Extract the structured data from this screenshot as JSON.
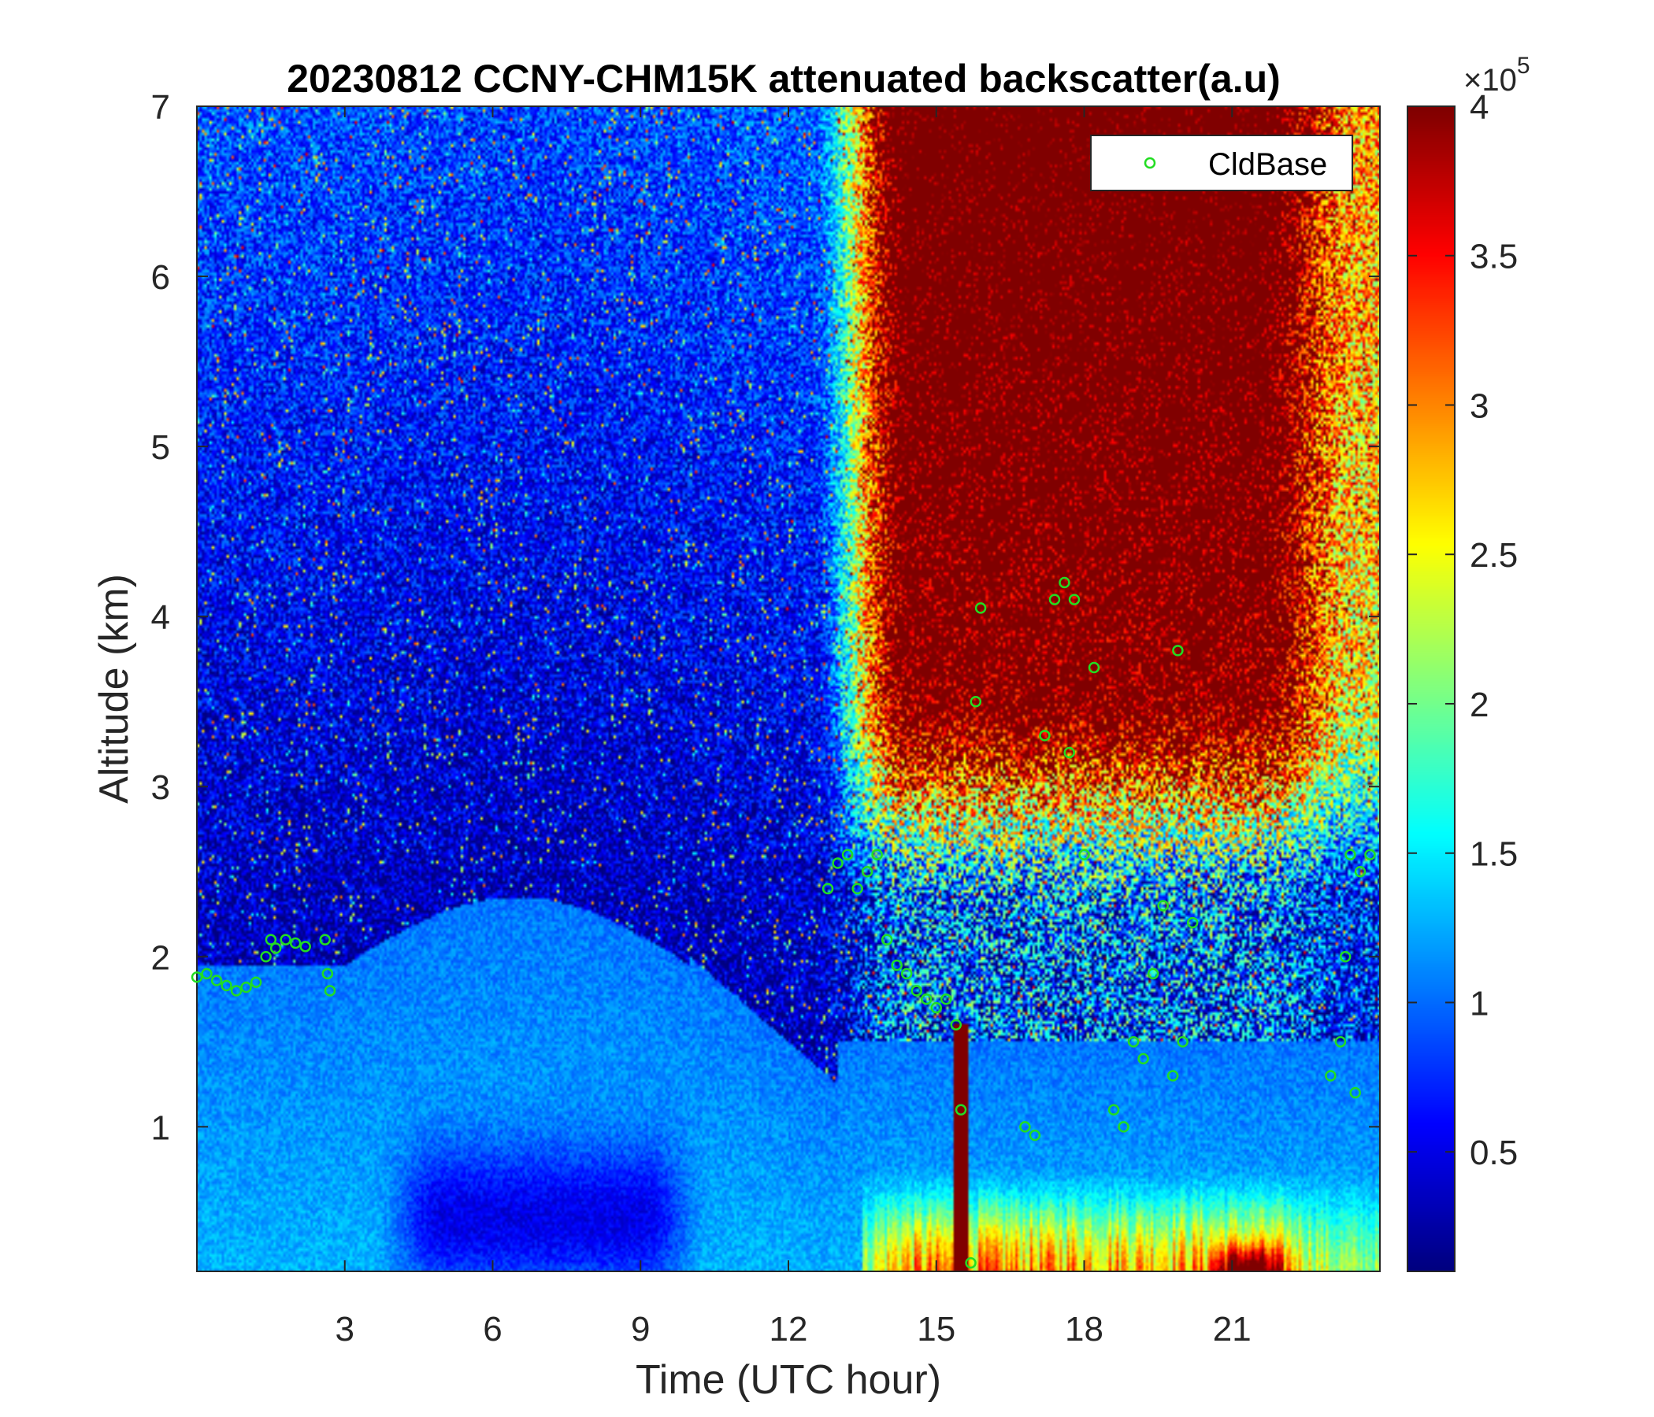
{
  "chart_data": {
    "type": "heatmap",
    "title": "20230812 CCNY-CHM15K attenuated backscatter(a.u)",
    "xlabel": "Time (UTC hour)",
    "ylabel": "Altitude (km)",
    "xlim": [
      0,
      24
    ],
    "ylim": [
      0.15,
      7
    ],
    "xticks": [
      3,
      6,
      9,
      12,
      15,
      18,
      21
    ],
    "yticks": [
      1,
      2,
      3,
      4,
      5,
      6,
      7
    ],
    "colormap": "jet",
    "colorbar": {
      "clim": [
        0.1,
        4
      ],
      "ticks": [
        0.5,
        1,
        1.5,
        2,
        2.5,
        3,
        3.5,
        4
      ],
      "exponent_base": "×10",
      "exponent_power": "5"
    },
    "legend": {
      "placement": "top-right",
      "entries": [
        {
          "name": "CldBase",
          "marker": "circle",
          "color": "#22dd22"
        }
      ]
    },
    "cloud_base_km": [
      [
        0.0,
        1.88
      ],
      [
        0.2,
        1.9
      ],
      [
        0.4,
        1.86
      ],
      [
        0.6,
        1.83
      ],
      [
        0.8,
        1.8
      ],
      [
        1.0,
        1.82
      ],
      [
        1.2,
        1.85
      ],
      [
        1.4,
        2.0
      ],
      [
        1.5,
        2.1
      ],
      [
        1.6,
        2.05
      ],
      [
        1.8,
        2.1
      ],
      [
        2.0,
        2.08
      ],
      [
        2.2,
        2.06
      ],
      [
        2.6,
        2.1
      ],
      [
        2.65,
        1.9
      ],
      [
        2.7,
        1.8
      ],
      [
        12.8,
        2.4
      ],
      [
        13.0,
        2.55
      ],
      [
        13.2,
        2.6
      ],
      [
        13.4,
        2.4
      ],
      [
        13.6,
        2.5
      ],
      [
        13.8,
        2.6
      ],
      [
        14.0,
        2.1
      ],
      [
        14.2,
        1.95
      ],
      [
        14.4,
        1.9
      ],
      [
        14.6,
        1.8
      ],
      [
        14.8,
        1.75
      ],
      [
        15.0,
        1.7
      ],
      [
        15.2,
        1.75
      ],
      [
        15.4,
        1.6
      ],
      [
        15.5,
        1.1
      ],
      [
        15.7,
        0.2
      ],
      [
        15.8,
        3.5
      ],
      [
        15.9,
        4.05
      ],
      [
        16.8,
        1.0
      ],
      [
        17.0,
        0.95
      ],
      [
        17.2,
        3.3
      ],
      [
        17.4,
        4.1
      ],
      [
        17.6,
        4.2
      ],
      [
        17.7,
        3.2
      ],
      [
        17.8,
        4.1
      ],
      [
        18.0,
        2.6
      ],
      [
        18.2,
        3.7
      ],
      [
        18.6,
        1.1
      ],
      [
        18.8,
        1.0
      ],
      [
        19.0,
        1.5
      ],
      [
        19.2,
        1.4
      ],
      [
        19.4,
        1.9
      ],
      [
        19.6,
        2.3
      ],
      [
        19.8,
        1.3
      ],
      [
        19.9,
        3.8
      ],
      [
        20.0,
        1.5
      ],
      [
        20.2,
        2.2
      ],
      [
        23.0,
        1.3
      ],
      [
        23.2,
        1.5
      ],
      [
        23.3,
        2.0
      ],
      [
        23.4,
        2.6
      ],
      [
        23.5,
        1.2
      ],
      [
        23.6,
        2.5
      ],
      [
        23.8,
        2.6
      ]
    ]
  }
}
